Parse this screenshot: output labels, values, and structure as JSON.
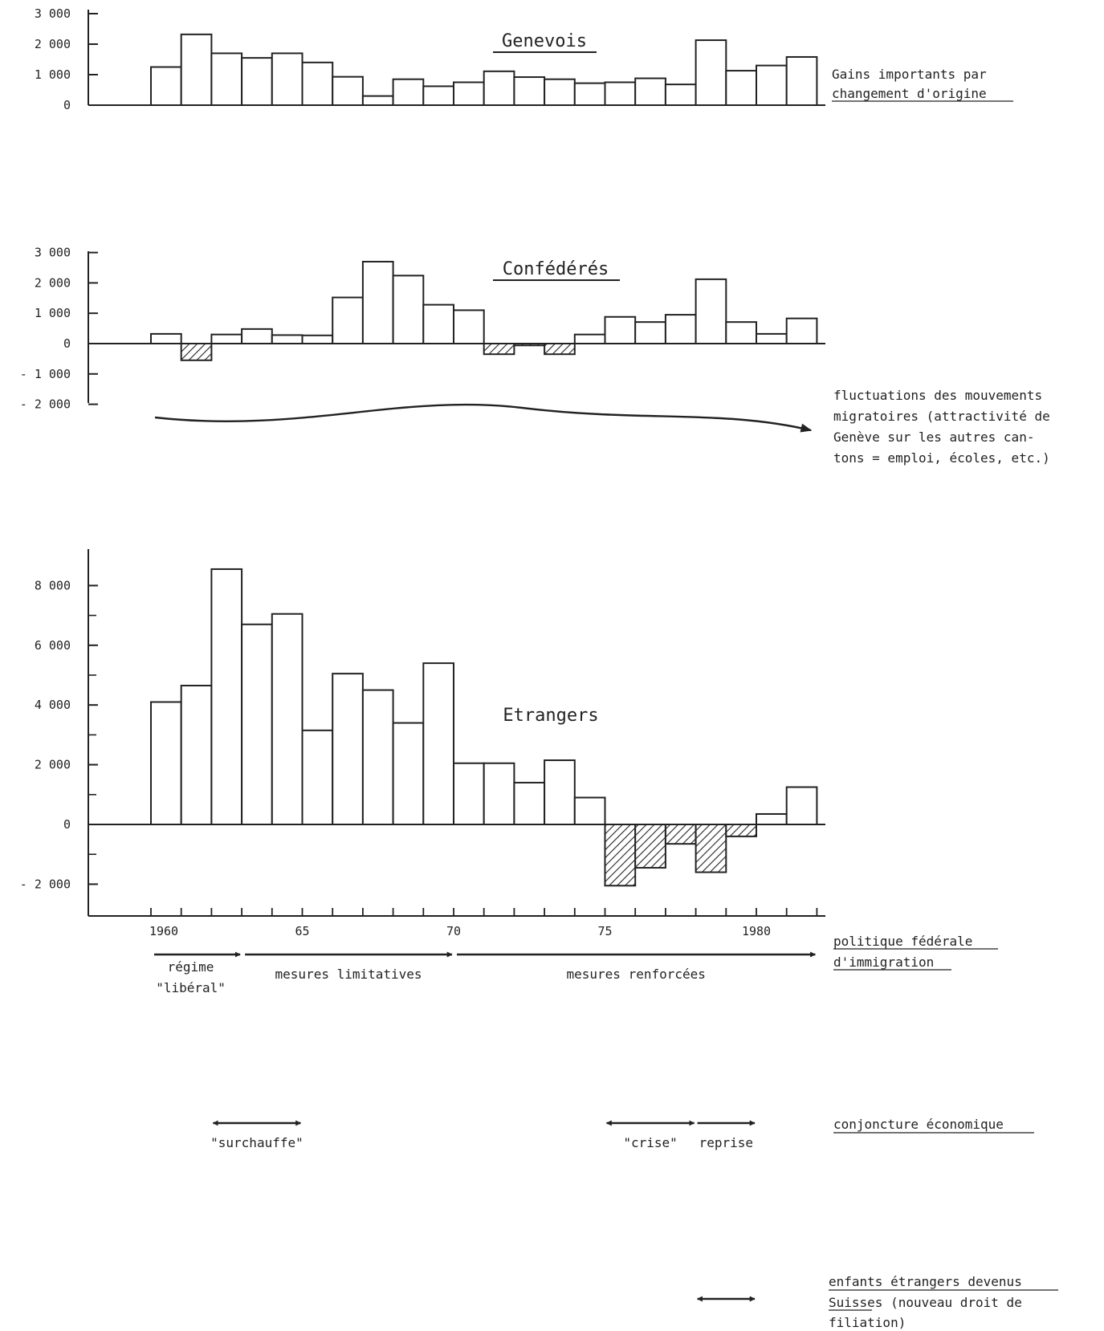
{
  "chart_data": [
    {
      "type": "bar",
      "title": "Genevois",
      "x": [
        1960,
        1961,
        1962,
        1963,
        1964,
        1965,
        1966,
        1967,
        1968,
        1969,
        1970,
        1971,
        1972,
        1973,
        1974,
        1975,
        1976,
        1977,
        1978,
        1979,
        1980,
        1981
      ],
      "values": [
        1250,
        2320,
        1700,
        1550,
        1700,
        1400,
        930,
        300,
        850,
        620,
        750,
        1110,
        920,
        850,
        720,
        750,
        880,
        680,
        2130,
        1130,
        1300,
        1580
      ],
      "yticks": [
        0,
        1000,
        2000,
        3000
      ],
      "yticklabels": [
        "0",
        "1 000",
        "2 000",
        "3 000"
      ],
      "ylim": [
        0,
        3000
      ],
      "annotation": [
        "Gains importants par",
        "changement d'origine"
      ]
    },
    {
      "type": "bar",
      "title": "Confédérés",
      "x": [
        1960,
        1961,
        1962,
        1963,
        1964,
        1965,
        1966,
        1967,
        1968,
        1969,
        1970,
        1971,
        1972,
        1973,
        1974,
        1975,
        1976,
        1977,
        1978,
        1979,
        1980,
        1981
      ],
      "values": [
        320,
        -550,
        300,
        480,
        280,
        270,
        1520,
        2700,
        2240,
        1280,
        1100,
        -350,
        -60,
        -350,
        300,
        880,
        710,
        950,
        2120,
        710,
        320,
        830
      ],
      "yticks": [
        -2000,
        -1000,
        0,
        1000,
        2000,
        3000
      ],
      "yticklabels": [
        "- 2 000",
        "- 1 000",
        "0",
        "1 000",
        "2 000",
        "3 000"
      ],
      "ylim": [
        -2000,
        3000
      ],
      "negative_fill": "hatched",
      "annotation": [
        "fluctuations des mouvements",
        "migratoires (attractivité de",
        "Genève sur les autres can-",
        "tons = emploi, écoles, etc.)"
      ]
    },
    {
      "type": "bar",
      "title": "Etrangers",
      "x": [
        1960,
        1961,
        1962,
        1963,
        1964,
        1965,
        1966,
        1967,
        1968,
        1969,
        1970,
        1971,
        1972,
        1973,
        1974,
        1975,
        1976,
        1977,
        1978,
        1979,
        1980,
        1981
      ],
      "values": [
        4100,
        4650,
        8550,
        6700,
        7050,
        3150,
        5050,
        4500,
        3400,
        5400,
        2050,
        2050,
        1400,
        2150,
        900,
        -2050,
        -1450,
        -650,
        -1600,
        -400,
        350,
        1250
      ],
      "yticks": [
        -2000,
        0,
        2000,
        4000,
        6000,
        8000
      ],
      "yticklabels": [
        "- 2 000",
        "0",
        "2 000",
        "4 000",
        "6 000",
        "8 000"
      ],
      "ylim": [
        -3000,
        9000
      ],
      "xticklabels": [
        "1960",
        "65",
        "70",
        "75",
        "1980"
      ],
      "negative_fill": "hatched"
    }
  ],
  "policy": {
    "label": [
      "politique fédérale",
      "d'immigration"
    ],
    "phases": [
      {
        "text": [
          "régime",
          "\"libéral\""
        ],
        "from": 1960,
        "to": 1963
      },
      {
        "text": [
          "mesures limitatives"
        ],
        "from": 1963,
        "to": 1970
      },
      {
        "text": [
          "mesures renforcées"
        ],
        "from": 1970,
        "to": 1982
      }
    ]
  },
  "conjoncture": {
    "label": "conjoncture économique",
    "periods": [
      {
        "text": "\"surchauffe\"",
        "from": 1962,
        "to": 1965
      },
      {
        "text": "\"crise\"",
        "from": 1975,
        "to": 1978
      },
      {
        "text": "reprise",
        "from": 1978,
        "to": 1980
      }
    ]
  },
  "filiation": {
    "label": [
      "enfants étrangers devenus",
      "Suisses (nouveau droit de",
      "filiation)"
    ],
    "from": 1978,
    "to": 1980
  }
}
